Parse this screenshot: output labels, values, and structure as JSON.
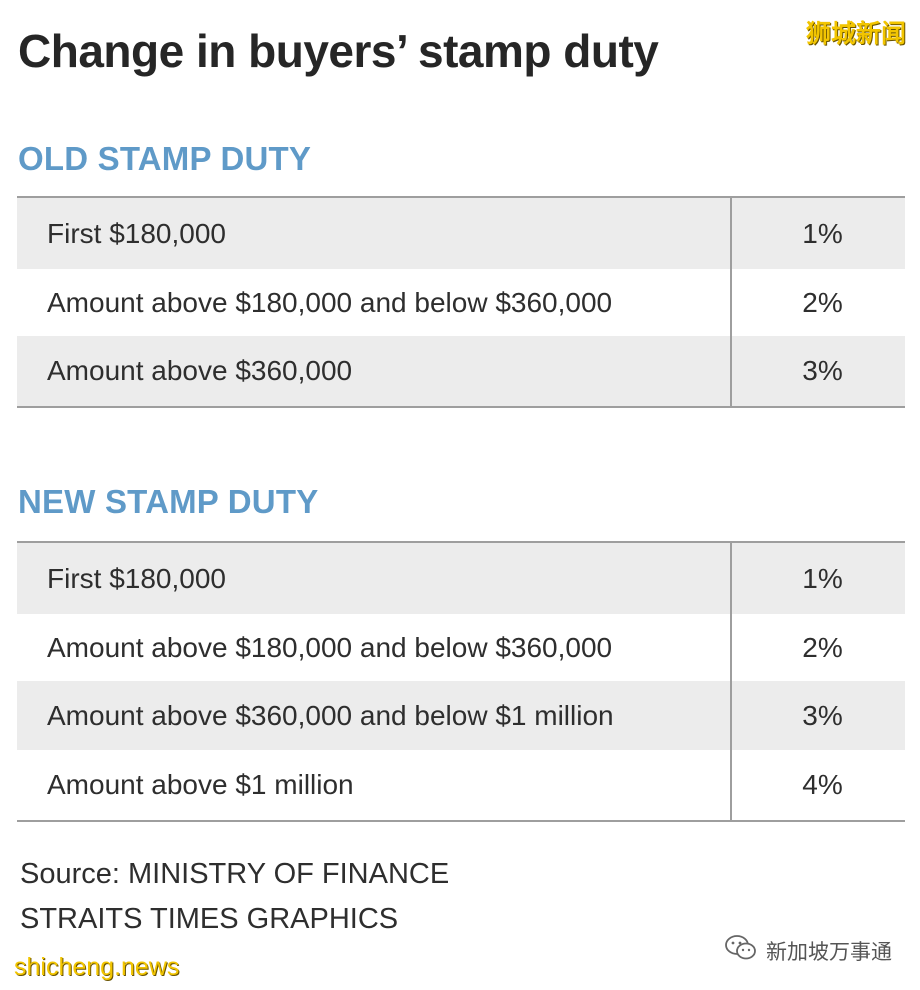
{
  "title": "Change in buyers’ stamp duty",
  "watermark_top": "狮城新闻",
  "old_section": {
    "heading": "OLD STAMP DUTY",
    "rows": [
      {
        "label": "First $180,000",
        "rate": "1%"
      },
      {
        "label": "Amount above $180,000 and below $360,000",
        "rate": "2%"
      },
      {
        "label": "Amount above $360,000",
        "rate": "3%"
      }
    ]
  },
  "new_section": {
    "heading": "NEW STAMP DUTY",
    "rows": [
      {
        "label": "First $180,000",
        "rate": "1%"
      },
      {
        "label": "Amount above $180,000 and below $360,000",
        "rate": "2%"
      },
      {
        "label": "Amount above $360,000 and below $1 million",
        "rate": "3%"
      },
      {
        "label": "Amount above $1 million",
        "rate": "4%"
      }
    ]
  },
  "footer": {
    "source": "Source: MINISTRY OF FINANCE",
    "credit": "STRAITS TIMES GRAPHICS"
  },
  "watermark_bottom_left": "shicheng.news",
  "watermark_bottom_right": "新加坡万事通",
  "colors": {
    "heading": "#5f9ac8",
    "row_shade": "#ececec",
    "rule": "#9e9e9e",
    "watermark": "#f2c500"
  },
  "icons": {
    "wechat_logo": "wechat-icon"
  }
}
